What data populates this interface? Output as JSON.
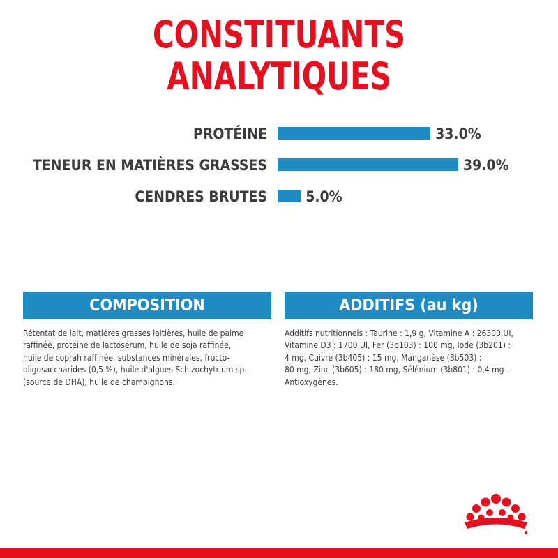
{
  "title": {
    "line1": "CONSTITUANTS",
    "line2": "ANALYTIQUES"
  },
  "colors": {
    "title": "#e3101f",
    "bar": "#1e8bc3",
    "label": "#3d3d3d",
    "header": "#1e8bc3",
    "bottom_bar": "#e3101f"
  },
  "chart_data": {
    "type": "bar",
    "orientation": "horizontal",
    "categories": [
      "PROTÉINE",
      "TENEUR EN MATIÈRES GRASSES",
      "CENDRES BRUTES"
    ],
    "values": [
      33.0,
      39.0,
      5.0
    ],
    "value_labels": [
      "33.0%",
      "39.0%",
      "5.0%"
    ],
    "unit": "%",
    "grid": false,
    "legend": "none",
    "xlim": [
      0,
      41
    ]
  },
  "composition": {
    "header": "COMPOSITION",
    "lines": [
      "Rétentat de lait, matières grasses laitières, huile de palme",
      "raffinée, protéine de lactosérum, huile de soja raffinée,",
      "huile de coprah raffinée, substances minérales, fructo-",
      "oligosaccharides (0,5 %), huile d'algues Schizochytrium sp.",
      "(source de DHA), huile de champignons."
    ]
  },
  "additifs": {
    "header": "ADDITIFS (au kg)",
    "lines": [
      "Additifs nutritionnels : Taurine : 1,9 g, Vitamine A : 26300 UI,",
      "Vitamine D3 : 1700 UI, Fer (3b103) : 100 mg, Iode (3b201) :",
      "4 mg, Cuivre (3b405) : 15 mg, Manganèse (3b503) :",
      "80 mg, Zinc (3b605) : 180 mg, Sélénium (3b801) : 0,4 mg -",
      "Antioxygènes."
    ]
  },
  "logo": {
    "name": "royal-canin-crown-icon"
  }
}
